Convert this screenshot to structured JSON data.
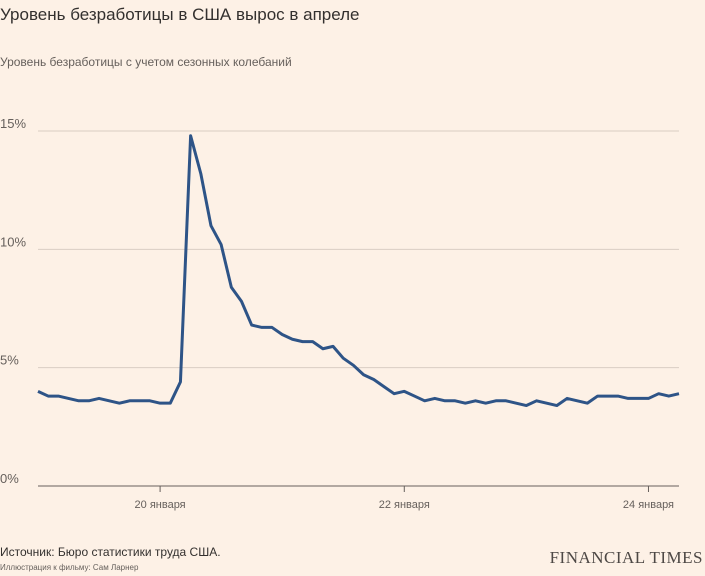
{
  "chart_data": {
    "type": "line",
    "title": "Уровень безработицы в США вырос в апреле",
    "subtitle": "Уровень безработицы с учетом сезонных колебаний",
    "source": "Источник: Бюро статистики труда США.",
    "credit": "Иллюстрация к фильму: Сам Ларнер",
    "brand": "FINANCIAL TIMES",
    "categories": [
      null,
      null,
      null,
      null,
      null,
      null,
      null,
      null,
      null,
      null,
      null,
      null,
      "20 января",
      null,
      null,
      null,
      null,
      null,
      null,
      null,
      null,
      null,
      null,
      null,
      null,
      null,
      null,
      null,
      null,
      null,
      null,
      null,
      null,
      null,
      null,
      null,
      "22 января",
      null,
      null,
      null,
      null,
      null,
      null,
      null,
      null,
      null,
      null,
      null,
      null,
      null,
      null,
      null,
      null,
      null,
      null,
      null,
      null,
      null,
      null,
      null,
      "24 января",
      null,
      null,
      null
    ],
    "series": [
      {
        "color": "#2e5487",
        "values": [
          4.0,
          3.8,
          3.8,
          3.7,
          3.6,
          3.6,
          3.7,
          3.6,
          3.5,
          3.6,
          3.6,
          3.6,
          3.5,
          3.5,
          4.4,
          14.8,
          13.2,
          11.0,
          10.2,
          8.4,
          7.8,
          6.8,
          6.7,
          6.7,
          6.4,
          6.2,
          6.1,
          6.1,
          5.8,
          5.9,
          5.4,
          5.1,
          4.7,
          4.5,
          4.2,
          3.9,
          4.0,
          3.8,
          3.6,
          3.7,
          3.6,
          3.6,
          3.5,
          3.6,
          3.5,
          3.6,
          3.6,
          3.5,
          3.4,
          3.6,
          3.5,
          3.4,
          3.7,
          3.6,
          3.5,
          3.8,
          3.8,
          3.8,
          3.7,
          3.7,
          3.7,
          3.9,
          3.8,
          3.9
        ]
      }
    ],
    "ylim": [
      0,
      15
    ],
    "yticks": [
      {
        "value": 0,
        "label": "0%"
      },
      {
        "value": 5,
        "label": "5%"
      },
      {
        "value": 10,
        "label": "10%"
      },
      {
        "value": 15,
        "label": "15%"
      }
    ],
    "grid": true
  }
}
